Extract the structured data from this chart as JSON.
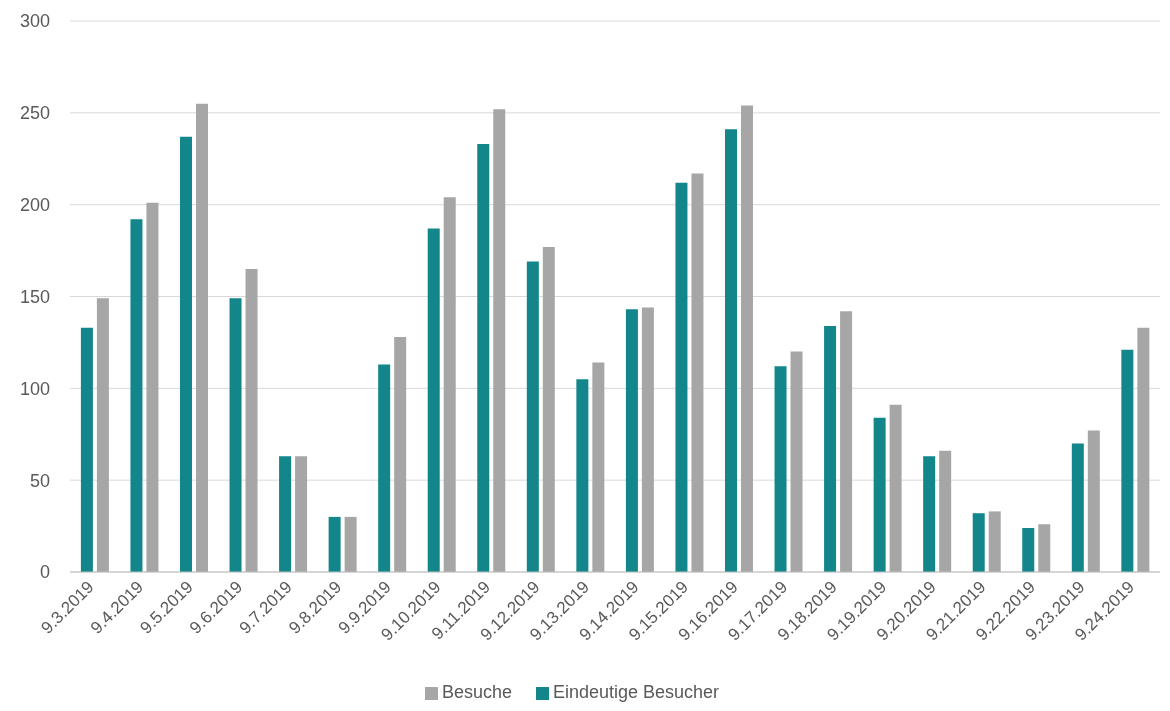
{
  "chart_data": {
    "type": "bar",
    "categories": [
      "9.3.2019",
      "9.4.2019",
      "9.5.2019",
      "9.6.2019",
      "9.7.2019",
      "9.8.2019",
      "9.9.2019",
      "9.10.2019",
      "9.11.2019",
      "9.12.2019",
      "9.13.2019",
      "9.14.2019",
      "9.15.2019",
      "9.16.2019",
      "9.17.2019",
      "9.18.2019",
      "9.19.2019",
      "9.20.2019",
      "9.21.2019",
      "9.22.2019",
      "9.23.2019",
      "9.24.2019"
    ],
    "series": [
      {
        "name": "Eindeutige Besucher",
        "color": "#12868a",
        "values": [
          133,
          192,
          237,
          149,
          63,
          30,
          113,
          187,
          233,
          169,
          105,
          143,
          212,
          241,
          112,
          134,
          84,
          63,
          32,
          24,
          70,
          121
        ]
      },
      {
        "name": "Besuche",
        "color": "#a6a6a6",
        "values": [
          149,
          201,
          255,
          165,
          63,
          30,
          128,
          204,
          252,
          177,
          114,
          144,
          217,
          254,
          120,
          142,
          91,
          66,
          33,
          26,
          77,
          133
        ]
      }
    ],
    "ylim": [
      0,
      300
    ],
    "yticks": [
      0,
      50,
      100,
      150,
      200,
      250,
      300
    ],
    "grid": "y",
    "legend": "bottom"
  }
}
